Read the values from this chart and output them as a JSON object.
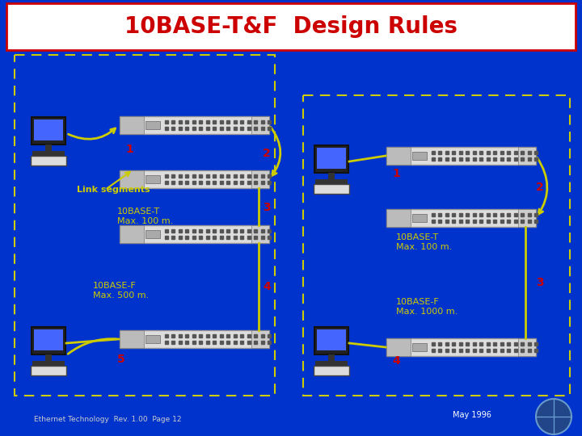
{
  "title": "10BASE-T&F  Design Rules",
  "bg_color": "#0033CC",
  "title_bg": "#FFFFFF",
  "title_color": "#CC0000",
  "border_color": "#CCCC00",
  "line_color": "#CCCC00",
  "label_color": "#CC0000",
  "text_color": "#FFFFFF",
  "text_yellow": "#CCCC00",
  "footer_text": "Ethernet Technology  Rev. 1.00  Page 12",
  "date_text": "May 1996"
}
